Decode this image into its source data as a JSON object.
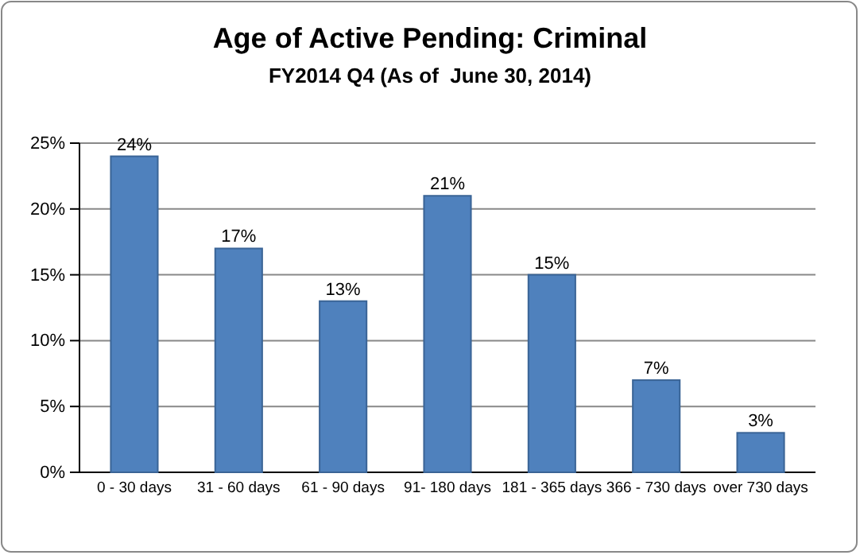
{
  "chart_data": {
    "type": "bar",
    "title": "Age of Active Pending: Criminal",
    "subtitle": "FY2014 Q4 (As of  June 30, 2014)",
    "categories": [
      "0 - 30 days",
      "31 - 60 days",
      "61 - 90 days",
      "91- 180 days",
      "181 - 365 days",
      "366 - 730 days",
      "over 730 days"
    ],
    "values": [
      24,
      17,
      13,
      21,
      15,
      7,
      3
    ],
    "value_labels": [
      "24%",
      "17%",
      "13%",
      "21%",
      "15%",
      "7%",
      "3%"
    ],
    "color": "#4f81bd",
    "ylim": [
      0,
      25
    ],
    "yticks": [
      {
        "value": 0,
        "label": "0%"
      },
      {
        "value": 5,
        "label": "5%"
      },
      {
        "value": 10,
        "label": "10%"
      },
      {
        "value": 15,
        "label": "15%"
      },
      {
        "value": 20,
        "label": "20%"
      },
      {
        "value": 25,
        "label": "25%"
      }
    ],
    "grid": "y"
  }
}
